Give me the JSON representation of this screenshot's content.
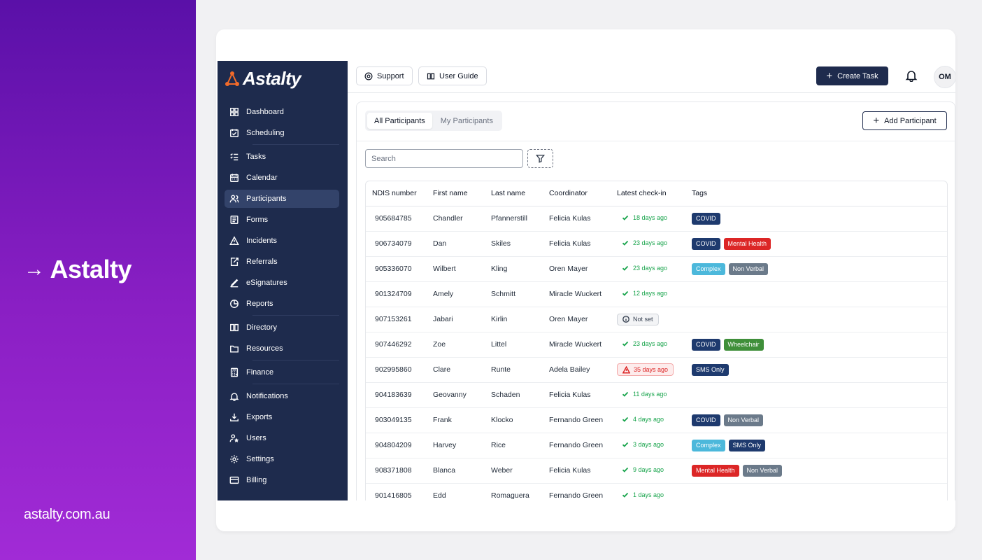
{
  "promo": {
    "title": "Astalty",
    "arrow": "→",
    "url": "astalty.com.au"
  },
  "app": {
    "logo_text": "Astalty"
  },
  "sidebar": {
    "items": [
      {
        "label": "Dashboard",
        "icon": "dashboard-icon"
      },
      {
        "label": "Scheduling",
        "icon": "scheduling-icon"
      },
      {
        "label": "Tasks",
        "icon": "tasks-icon"
      },
      {
        "label": "Calendar",
        "icon": "calendar-icon"
      },
      {
        "label": "Participants",
        "icon": "participants-icon",
        "active": true
      },
      {
        "label": "Forms",
        "icon": "forms-icon"
      },
      {
        "label": "Incidents",
        "icon": "incidents-icon"
      },
      {
        "label": "Referrals",
        "icon": "referrals-icon"
      },
      {
        "label": "eSignatures",
        "icon": "esignatures-icon"
      },
      {
        "label": "Reports",
        "icon": "reports-icon"
      },
      {
        "label": "Directory",
        "icon": "directory-icon"
      },
      {
        "label": "Resources",
        "icon": "resources-icon"
      },
      {
        "label": "Finance",
        "icon": "finance-icon"
      },
      {
        "label": "Notifications",
        "icon": "notifications-icon"
      },
      {
        "label": "Exports",
        "icon": "exports-icon"
      },
      {
        "label": "Users",
        "icon": "users-icon"
      },
      {
        "label": "Settings",
        "icon": "settings-icon"
      },
      {
        "label": "Billing",
        "icon": "billing-icon"
      }
    ]
  },
  "topbar": {
    "support_label": "Support",
    "guide_label": "User Guide",
    "create_label": "Create Task",
    "avatar_initials": "OM"
  },
  "participants": {
    "tabs": [
      "All Participants",
      "My Participants"
    ],
    "add_label": "Add Participant",
    "search_placeholder": "Search",
    "columns": [
      "NDIS number",
      "First name",
      "Last name",
      "Coordinator",
      "Latest check-in",
      "Tags"
    ],
    "rows": [
      {
        "ndis": "905684785",
        "first": "Chandler",
        "last": "Pfannerstill",
        "coordinator": "Felicia Kulas",
        "checkin": "18 days ago",
        "status": "ok",
        "tags": [
          "COVID"
        ]
      },
      {
        "ndis": "906734079",
        "first": "Dan",
        "last": "Skiles",
        "coordinator": "Felicia Kulas",
        "checkin": "23 days ago",
        "status": "ok",
        "tags": [
          "COVID",
          "Mental Health"
        ]
      },
      {
        "ndis": "905336070",
        "first": "Wilbert",
        "last": "Kling",
        "coordinator": "Oren Mayer",
        "checkin": "23 days ago",
        "status": "ok",
        "tags": [
          "Complex",
          "Non Verbal"
        ]
      },
      {
        "ndis": "901324709",
        "first": "Amely",
        "last": "Schmitt",
        "coordinator": "Miracle Wuckert",
        "checkin": "12 days ago",
        "status": "ok",
        "tags": []
      },
      {
        "ndis": "907153261",
        "first": "Jabari",
        "last": "Kirlin",
        "coordinator": "Oren Mayer",
        "checkin": "Not set",
        "status": "notset",
        "tags": []
      },
      {
        "ndis": "907446292",
        "first": "Zoe",
        "last": "Littel",
        "coordinator": "Miracle Wuckert",
        "checkin": "23 days ago",
        "status": "ok",
        "tags": [
          "COVID",
          "Wheelchair"
        ]
      },
      {
        "ndis": "902995860",
        "first": "Clare",
        "last": "Runte",
        "coordinator": "Adela Bailey",
        "checkin": "35 days ago",
        "status": "overdue",
        "tags": [
          "SMS Only"
        ]
      },
      {
        "ndis": "904183639",
        "first": "Geovanny",
        "last": "Schaden",
        "coordinator": "Felicia Kulas",
        "checkin": "11 days ago",
        "status": "ok",
        "tags": []
      },
      {
        "ndis": "903049135",
        "first": "Frank",
        "last": "Klocko",
        "coordinator": "Fernando Green",
        "checkin": "4 days ago",
        "status": "ok",
        "tags": [
          "COVID",
          "Non Verbal"
        ]
      },
      {
        "ndis": "904804209",
        "first": "Harvey",
        "last": "Rice",
        "coordinator": "Fernando Green",
        "checkin": "3 days ago",
        "status": "ok",
        "tags": [
          "Complex",
          "SMS Only"
        ]
      },
      {
        "ndis": "908371808",
        "first": "Blanca",
        "last": "Weber",
        "coordinator": "Felicia Kulas",
        "checkin": "9 days ago",
        "status": "ok",
        "tags": [
          "Mental Health",
          "Non Verbal"
        ]
      },
      {
        "ndis": "901416805",
        "first": "Edd",
        "last": "Romaguera",
        "coordinator": "Fernando Green",
        "checkin": "1 days ago",
        "status": "ok",
        "tags": []
      }
    ]
  },
  "tag_colors": {
    "COVID": "#1e3a6e",
    "Mental Health": "#dc2626",
    "Complex": "#4cb8db",
    "Non Verbal": "#6b7a8a",
    "Wheelchair": "#3f8f3a",
    "SMS Only": "#1e3a6e"
  },
  "colors": {
    "sidebar_bg": "#1e2b4d",
    "accent_orange": "#f26b2a",
    "ok_green": "#16a34a",
    "alert_red": "#dc2626"
  }
}
